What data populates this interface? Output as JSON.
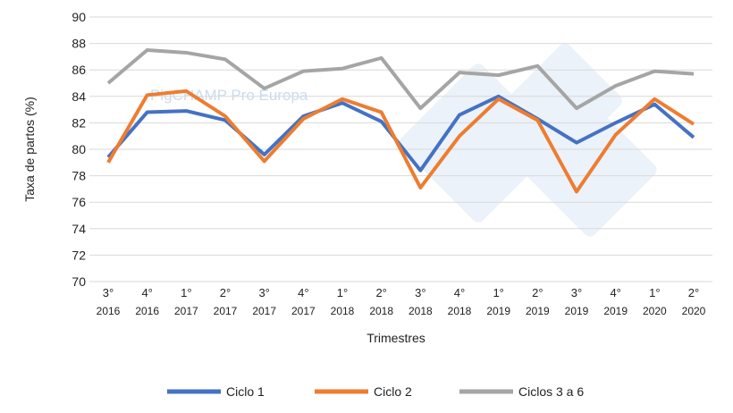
{
  "chart_data": {
    "type": "line",
    "title": "",
    "xlabel": "Trimestres",
    "ylabel": "Taxa de partos (%)",
    "ylim": [
      70,
      90
    ],
    "yticks": [
      70,
      72,
      74,
      76,
      78,
      80,
      82,
      84,
      86,
      88,
      90
    ],
    "grid": true,
    "legend": "bottom",
    "categories": [
      [
        "3°",
        "2016"
      ],
      [
        "4°",
        "2016"
      ],
      [
        "1°",
        "2017"
      ],
      [
        "2°",
        "2017"
      ],
      [
        "3°",
        "2017"
      ],
      [
        "4°",
        "2017"
      ],
      [
        "1°",
        "2018"
      ],
      [
        "2°",
        "2018"
      ],
      [
        "3°",
        "2018"
      ],
      [
        "4°",
        "2018"
      ],
      [
        "1°",
        "2019"
      ],
      [
        "2°",
        "2019"
      ],
      [
        "3°",
        "2019"
      ],
      [
        "4°",
        "2019"
      ],
      [
        "1°",
        "2020"
      ],
      [
        "2°",
        "2020"
      ]
    ],
    "series": [
      {
        "name": "Ciclo 1",
        "color": "#4472c4",
        "values": [
          79.4,
          82.8,
          82.9,
          82.2,
          79.6,
          82.5,
          83.5,
          82.1,
          78.4,
          82.6,
          84.0,
          82.3,
          80.5,
          82.0,
          83.4,
          80.9
        ]
      },
      {
        "name": "Ciclo 2",
        "color": "#ed7d31",
        "values": [
          79.0,
          84.1,
          84.4,
          82.5,
          79.1,
          82.3,
          83.8,
          82.8,
          77.1,
          81.0,
          83.8,
          82.2,
          76.8,
          81.1,
          83.8,
          81.9
        ]
      },
      {
        "name": "Ciclos 3 a 6",
        "color": "#a5a5a5",
        "values": [
          85.0,
          87.5,
          87.3,
          86.8,
          84.6,
          85.9,
          86.1,
          86.9,
          83.1,
          85.8,
          85.6,
          86.3,
          83.1,
          84.8,
          85.9,
          85.7
        ]
      }
    ],
    "watermark": "PigCHAMP Pro Europa"
  }
}
